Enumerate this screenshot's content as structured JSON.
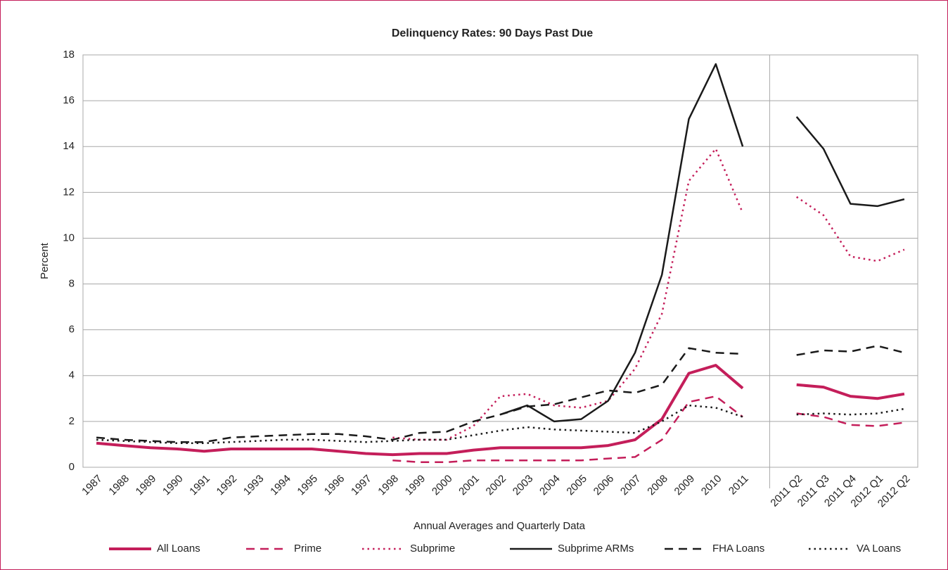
{
  "chart_data": {
    "type": "line",
    "title": "Delinquency Rates: 90 Days Past Due",
    "x_label": "Annual Averages and Quarterly Data",
    "y_label": "Percent",
    "categories": [
      "1987",
      "1988",
      "1989",
      "1990",
      "1991",
      "1992",
      "1993",
      "1994",
      "1995",
      "1996",
      "1997",
      "1998",
      "1999",
      "2000",
      "2001",
      "2002",
      "2003",
      "2004",
      "2005",
      "2006",
      "2007",
      "2008",
      "2009",
      "2010",
      "2011",
      null,
      "2011 Q2",
      "2011 Q3",
      "2011 Q4",
      "2012 Q1",
      "2012 Q2"
    ],
    "ylim": [
      0,
      18
    ],
    "yticks": [
      0,
      2,
      4,
      6,
      8,
      10,
      12,
      14,
      16,
      18
    ],
    "grid": true,
    "legend": "bottom",
    "series": [
      {
        "name": "All Loans",
        "color": "#c41e5a",
        "dash": "solid",
        "width": 4,
        "values": [
          1.05,
          0.95,
          0.85,
          0.8,
          0.7,
          0.8,
          0.8,
          0.8,
          0.8,
          0.7,
          0.6,
          0.55,
          0.6,
          0.6,
          0.75,
          0.85,
          0.85,
          0.85,
          0.85,
          0.95,
          1.2,
          2.1,
          4.1,
          4.45,
          3.45,
          null,
          3.6,
          3.5,
          3.1,
          3.0,
          3.2
        ]
      },
      {
        "name": "Prime",
        "color": "#c41e5a",
        "dash": "dashed",
        "width": 2.5,
        "values": [
          null,
          null,
          null,
          null,
          null,
          null,
          null,
          null,
          null,
          null,
          null,
          0.3,
          0.22,
          0.22,
          0.3,
          0.3,
          0.3,
          0.3,
          0.3,
          0.38,
          0.45,
          1.2,
          2.85,
          3.1,
          2.2,
          null,
          2.35,
          2.2,
          1.85,
          1.8,
          1.95
        ]
      },
      {
        "name": "Subprime",
        "color": "#c41e5a",
        "dash": "dotted",
        "width": 2.5,
        "values": [
          null,
          null,
          null,
          null,
          null,
          null,
          null,
          null,
          null,
          null,
          null,
          1.3,
          1.2,
          1.2,
          1.8,
          3.1,
          3.2,
          2.7,
          2.6,
          2.9,
          4.3,
          6.7,
          12.5,
          13.9,
          11.1,
          null,
          11.8,
          11.0,
          9.2,
          9.0,
          9.5
        ]
      },
      {
        "name": "Subprime ARMs",
        "color": "#1a1a1a",
        "dash": "solid",
        "width": 2.5,
        "values": [
          null,
          null,
          null,
          null,
          null,
          null,
          null,
          null,
          null,
          null,
          null,
          null,
          null,
          null,
          null,
          2.3,
          2.7,
          2.0,
          2.1,
          2.9,
          5.0,
          8.4,
          15.2,
          17.6,
          14.0,
          null,
          15.3,
          13.9,
          11.5,
          11.4,
          11.7
        ]
      },
      {
        "name": "FHA Loans",
        "color": "#1a1a1a",
        "dash": "dashed",
        "width": 2.5,
        "values": [
          1.3,
          1.2,
          1.15,
          1.1,
          1.1,
          1.3,
          1.35,
          1.4,
          1.45,
          1.45,
          1.35,
          1.2,
          1.5,
          1.55,
          2.0,
          2.3,
          2.65,
          2.75,
          3.05,
          3.35,
          3.25,
          3.6,
          5.2,
          5.0,
          4.95,
          null,
          4.9,
          5.1,
          5.05,
          5.3,
          5.0
        ]
      },
      {
        "name": "VA Loans",
        "color": "#1a1a1a",
        "dash": "dotted",
        "width": 2.5,
        "values": [
          1.2,
          1.15,
          1.1,
          1.05,
          1.05,
          1.1,
          1.15,
          1.2,
          1.2,
          1.15,
          1.1,
          1.15,
          1.2,
          1.2,
          1.4,
          1.6,
          1.75,
          1.65,
          1.6,
          1.55,
          1.5,
          2.0,
          2.7,
          2.6,
          2.2,
          null,
          2.3,
          2.35,
          2.3,
          2.35,
          2.55
        ]
      }
    ]
  }
}
